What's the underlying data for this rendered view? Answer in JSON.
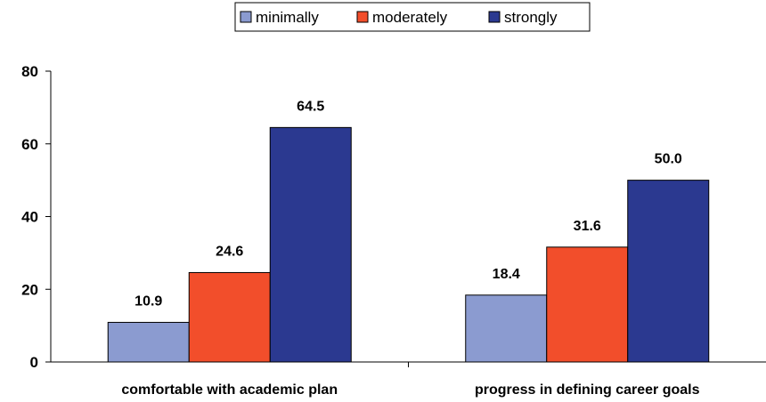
{
  "chart_data": {
    "type": "bar",
    "categories": [
      "comfortable with academic plan",
      "progress in defining career goals"
    ],
    "series": [
      {
        "name": "minimally",
        "values": [
          10.9,
          18.4
        ],
        "color": "#8b9bd0"
      },
      {
        "name": "moderately",
        "values": [
          24.6,
          31.6
        ],
        "color": "#f24e2b"
      },
      {
        "name": "strongly",
        "values": [
          64.5,
          50.0
        ],
        "color": "#2b3990"
      }
    ],
    "value_labels": [
      [
        "10.9",
        "18.4"
      ],
      [
        "24.6",
        "31.6"
      ],
      [
        "64.5",
        "50.0"
      ]
    ],
    "yticks": [
      "0",
      "20",
      "40",
      "60",
      "80"
    ],
    "ylim": [
      0,
      80
    ],
    "title": "",
    "xlabel": "",
    "ylabel": "",
    "legend_position": "top-center",
    "grid": false
  }
}
